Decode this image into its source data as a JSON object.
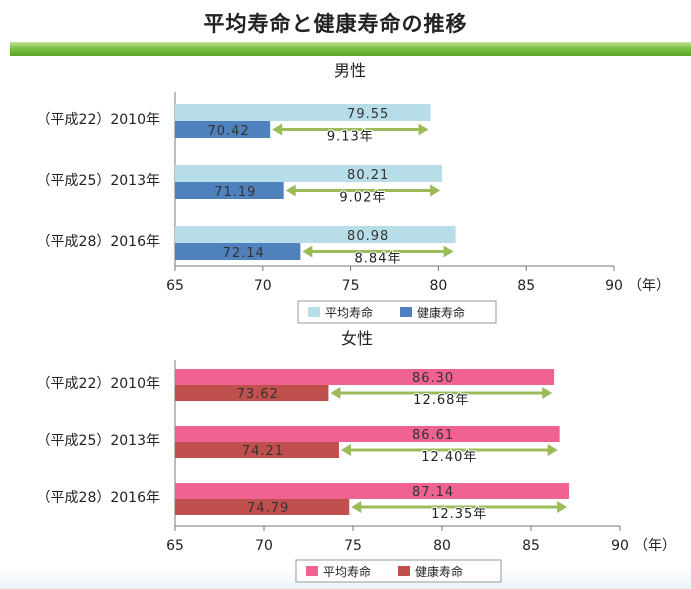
{
  "page_title": "平均寿命と健康寿命の推移",
  "colors": {
    "male_avg": "#b7dde8",
    "male_health": "#4f81bd",
    "female_avg": "#f06292",
    "female_health": "#c0504d",
    "arrow": "#9bbb59",
    "header_band": "#7bc043"
  },
  "chart_data": [
    {
      "type": "bar",
      "title": "男性",
      "categories": [
        "（平成22）2010年",
        "（平成25）2013年",
        "（平成28）2016年"
      ],
      "series": [
        {
          "name": "平均寿命",
          "values": [
            79.55,
            80.21,
            80.98
          ]
        },
        {
          "name": "健康寿命",
          "values": [
            70.42,
            71.19,
            72.14
          ]
        }
      ],
      "gaps": [
        9.13,
        9.02,
        8.84
      ],
      "gap_labels": [
        "9.13年",
        "9.02年",
        "8.84年"
      ],
      "value_labels_avg": [
        "79.55",
        "80.21",
        "80.98"
      ],
      "value_labels_health": [
        "70.42",
        "71.19",
        "72.14"
      ],
      "xlim": [
        65,
        90
      ],
      "xticks": [
        "65",
        "70",
        "75",
        "80",
        "85",
        "90"
      ],
      "x_unit": "（年）",
      "legend_position": "bottom"
    },
    {
      "type": "bar",
      "title": "女性",
      "categories": [
        "（平成22）2010年",
        "（平成25）2013年",
        "（平成28）2016年"
      ],
      "series": [
        {
          "name": "平均寿命",
          "values": [
            86.3,
            86.61,
            87.14
          ]
        },
        {
          "name": "健康寿命",
          "values": [
            73.62,
            74.21,
            74.79
          ]
        }
      ],
      "gaps": [
        12.68,
        12.4,
        12.35
      ],
      "gap_labels": [
        "12.68年",
        "12.40年",
        "12.35年"
      ],
      "value_labels_avg": [
        "86.30",
        "86.61",
        "87.14"
      ],
      "value_labels_health": [
        "73.62",
        "74.21",
        "74.79"
      ],
      "xlim": [
        65,
        90
      ],
      "xticks": [
        "65",
        "70",
        "75",
        "80",
        "85",
        "90"
      ],
      "x_unit": "（年）",
      "legend_position": "bottom"
    }
  ]
}
